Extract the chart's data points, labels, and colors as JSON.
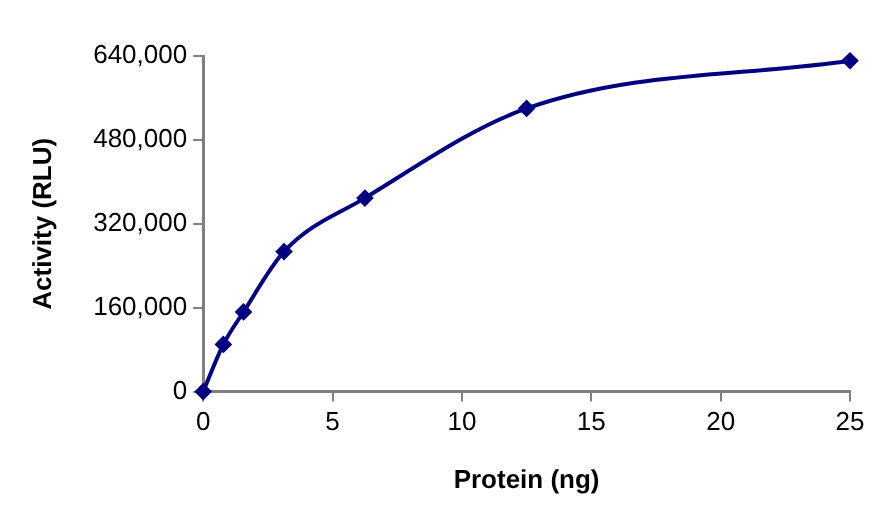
{
  "chart_data": {
    "type": "line",
    "xlabel": "Protein (ng)",
    "ylabel": "Activity (RLU)",
    "x": [
      0,
      0.78,
      1.56,
      3.125,
      6.25,
      12.5,
      25
    ],
    "series": [
      {
        "color": "#000080",
        "values": [
          0,
          90000,
          152000,
          267000,
          369000,
          540000,
          631000
        ]
      }
    ],
    "xlim": [
      0,
      25
    ],
    "xticks": [
      0,
      5,
      10,
      15,
      20,
      25
    ],
    "ylim": [
      0,
      640000
    ],
    "yticks": [
      {
        "value": 0,
        "label": "0"
      },
      {
        "value": 160000,
        "label": "160,000"
      },
      {
        "value": 320000,
        "label": "320,000"
      },
      {
        "value": 480000,
        "label": "480,000"
      },
      {
        "value": 640000,
        "label": "640,000"
      }
    ],
    "grid": false,
    "legend": false,
    "marker": "diamond",
    "line_style": "solid"
  }
}
